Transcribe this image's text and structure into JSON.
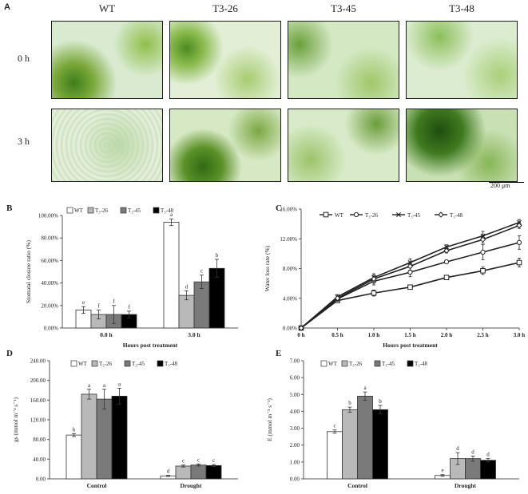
{
  "panel_a": {
    "letter": "A",
    "columns": [
      "WT",
      "T3-26",
      "T3-45",
      "T3-48"
    ],
    "rows": [
      "0 h",
      "3 h"
    ],
    "scale_bar": "200 μm"
  },
  "colors": {
    "WT": "#ffffff",
    "T3-26": "#b9b9b9",
    "T3-45": "#7a7a7a",
    "T3-48": "#000000",
    "border": "#222222"
  },
  "chart_data": [
    {
      "panel": "B",
      "type": "bar",
      "ylabel": "Stomatal closure ratio (%)",
      "xlabel": "Hours post treatment",
      "ylim": [
        0,
        100
      ],
      "yticks": [
        "0.00%",
        "20.00%",
        "40.00%",
        "60.00%",
        "80.00%",
        "100.00%"
      ],
      "categories": [
        "0.0 h",
        "3.0 h"
      ],
      "series": [
        {
          "name": "WT",
          "values": [
            16,
            94
          ],
          "errors": [
            3,
            3
          ],
          "letters": [
            "e",
            "a"
          ]
        },
        {
          "name": "T3-26",
          "values": [
            12,
            29
          ],
          "errors": [
            4,
            4
          ],
          "letters": [
            "f",
            "d"
          ]
        },
        {
          "name": "T3-45",
          "values": [
            12,
            41
          ],
          "errors": [
            8,
            6
          ],
          "letters": [
            "f",
            "c"
          ]
        },
        {
          "name": "T3-48",
          "values": [
            12,
            53
          ],
          "errors": [
            3,
            8
          ],
          "letters": [
            "f",
            "b"
          ]
        }
      ],
      "grid": false,
      "legend": "top-left"
    },
    {
      "panel": "C",
      "type": "line",
      "ylabel": "Water loss rate (%)",
      "xlabel": "Hours post treatment",
      "ylim": [
        0,
        16
      ],
      "yticks": [
        "0.00%",
        "4.00%",
        "8.00%",
        "12.00%",
        "16.00%"
      ],
      "x": [
        "0 h",
        "0.5 h",
        "1.0 h",
        "1.5 h",
        "2.0 h",
        "2.5 h",
        "3.0 h"
      ],
      "series": [
        {
          "name": "WT",
          "values": [
            0,
            3.7,
            4.7,
            5.5,
            6.8,
            7.7,
            8.8
          ],
          "errors": [
            0,
            0.3,
            0.4,
            0.3,
            0.3,
            0.5,
            0.6
          ],
          "marker": "square"
        },
        {
          "name": "T3-26",
          "values": [
            0,
            3.9,
            6.3,
            7.5,
            8.9,
            10.2,
            11.5
          ],
          "errors": [
            0,
            0.3,
            0.5,
            0.6,
            0.2,
            1.0,
            0.9
          ],
          "marker": "circle"
        },
        {
          "name": "T3-45",
          "values": [
            0,
            4.2,
            6.8,
            8.8,
            10.9,
            12.4,
            14.2
          ],
          "errors": [
            0,
            0.3,
            0.5,
            0.5,
            0.3,
            0.6,
            0.4
          ],
          "marker": "x"
        },
        {
          "name": "T3-48",
          "values": [
            0,
            4.0,
            6.6,
            8.3,
            10.4,
            11.9,
            13.8
          ],
          "errors": [
            0,
            0.3,
            0.5,
            0.5,
            0.3,
            0.5,
            0.4
          ],
          "marker": "diamond"
        }
      ],
      "grid": false,
      "legend": "top"
    },
    {
      "panel": "D",
      "type": "bar",
      "ylabel": "gs (mmol m⁻² s⁻¹)",
      "xlabel": "",
      "ylim": [
        0,
        240
      ],
      "yticks": [
        "0.00",
        "40.00",
        "80.00",
        "120.00",
        "160.00",
        "200.00",
        "240.00"
      ],
      "categories": [
        "Control",
        "Drought"
      ],
      "series": [
        {
          "name": "WT",
          "values": [
            89,
            6
          ],
          "errors": [
            3,
            1
          ],
          "letters": [
            "b",
            "d"
          ]
        },
        {
          "name": "T3-26",
          "values": [
            172,
            26
          ],
          "errors": [
            10,
            2
          ],
          "letters": [
            "a",
            "c"
          ]
        },
        {
          "name": "T3-45",
          "values": [
            162,
            28
          ],
          "errors": [
            20,
            2
          ],
          "letters": [
            "a",
            "c"
          ]
        },
        {
          "name": "T3-48",
          "values": [
            168,
            27
          ],
          "errors": [
            16,
            2
          ],
          "letters": [
            "a",
            "c"
          ]
        }
      ],
      "grid": false,
      "legend": "top"
    },
    {
      "panel": "E",
      "type": "bar",
      "ylabel": "E (mmol m⁻² s⁻¹)",
      "xlabel": "",
      "ylim": [
        0,
        7
      ],
      "yticks": [
        "0.00",
        "1.00",
        "2.00",
        "3.00",
        "4.00",
        "5.00",
        "6.00",
        "7.00"
      ],
      "categories": [
        "Control",
        "Drought"
      ],
      "series": [
        {
          "name": "WT",
          "values": [
            2.8,
            0.2
          ],
          "errors": [
            0.1,
            0.05
          ],
          "letters": [
            "c",
            "e"
          ]
        },
        {
          "name": "T3-26",
          "values": [
            4.1,
            1.2
          ],
          "errors": [
            0.15,
            0.35
          ],
          "letters": [
            "b",
            "d"
          ]
        },
        {
          "name": "T3-45",
          "values": [
            4.9,
            1.2
          ],
          "errors": [
            0.25,
            0.15
          ],
          "letters": [
            "a",
            "d"
          ]
        },
        {
          "name": "T3-48",
          "values": [
            4.1,
            1.1
          ],
          "errors": [
            0.25,
            0.1
          ],
          "letters": [
            "b",
            "d"
          ]
        }
      ],
      "grid": false,
      "legend": "top"
    }
  ]
}
